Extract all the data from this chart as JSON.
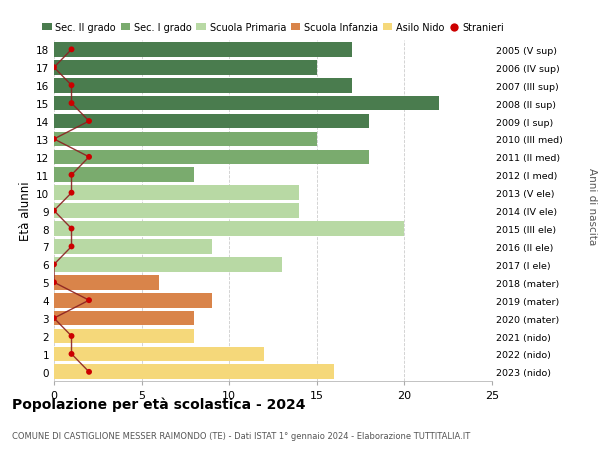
{
  "ages": [
    18,
    17,
    16,
    15,
    14,
    13,
    12,
    11,
    10,
    9,
    8,
    7,
    6,
    5,
    4,
    3,
    2,
    1,
    0
  ],
  "right_labels": [
    "2005 (V sup)",
    "2006 (IV sup)",
    "2007 (III sup)",
    "2008 (II sup)",
    "2009 (I sup)",
    "2010 (III med)",
    "2011 (II med)",
    "2012 (I med)",
    "2013 (V ele)",
    "2014 (IV ele)",
    "2015 (III ele)",
    "2016 (II ele)",
    "2017 (I ele)",
    "2018 (mater)",
    "2019 (mater)",
    "2020 (mater)",
    "2021 (nido)",
    "2022 (nido)",
    "2023 (nido)"
  ],
  "bar_values": [
    17,
    15,
    17,
    22,
    18,
    15,
    18,
    8,
    14,
    14,
    20,
    9,
    13,
    6,
    9,
    8,
    8,
    12,
    16
  ],
  "bar_colors": [
    "#4a7c4e",
    "#4a7c4e",
    "#4a7c4e",
    "#4a7c4e",
    "#4a7c4e",
    "#7aab6e",
    "#7aab6e",
    "#7aab6e",
    "#b8d9a4",
    "#b8d9a4",
    "#b8d9a4",
    "#b8d9a4",
    "#b8d9a4",
    "#d9844a",
    "#d9844a",
    "#d9844a",
    "#f5d87a",
    "#f5d87a",
    "#f5d87a"
  ],
  "stranieri_values": [
    1,
    0,
    1,
    1,
    2,
    0,
    2,
    1,
    1,
    0,
    1,
    1,
    0,
    0,
    2,
    0,
    1,
    1,
    2
  ],
  "legend_labels": [
    "Sec. II grado",
    "Sec. I grado",
    "Scuola Primaria",
    "Scuola Infanzia",
    "Asilo Nido",
    "Stranieri"
  ],
  "legend_colors": [
    "#4a7c4e",
    "#7aab6e",
    "#b8d9a4",
    "#d9844a",
    "#f5d87a",
    "#cc0000"
  ],
  "title": "Popolazione per età scolastica - 2024",
  "subtitle": "COMUNE DI CASTIGLIONE MESSER RAIMONDO (TE) - Dati ISTAT 1° gennaio 2024 - Elaborazione TUTTITALIA.IT",
  "ylabel_left": "Età alunni",
  "ylabel_right": "Anni di nascita",
  "xlim": [
    0,
    25
  ],
  "xticks": [
    0,
    5,
    10,
    15,
    20,
    25
  ],
  "background_color": "#ffffff",
  "grid_color": "#cccccc",
  "stranieri_line_color": "#8b2020",
  "stranieri_dot_color": "#cc0000"
}
